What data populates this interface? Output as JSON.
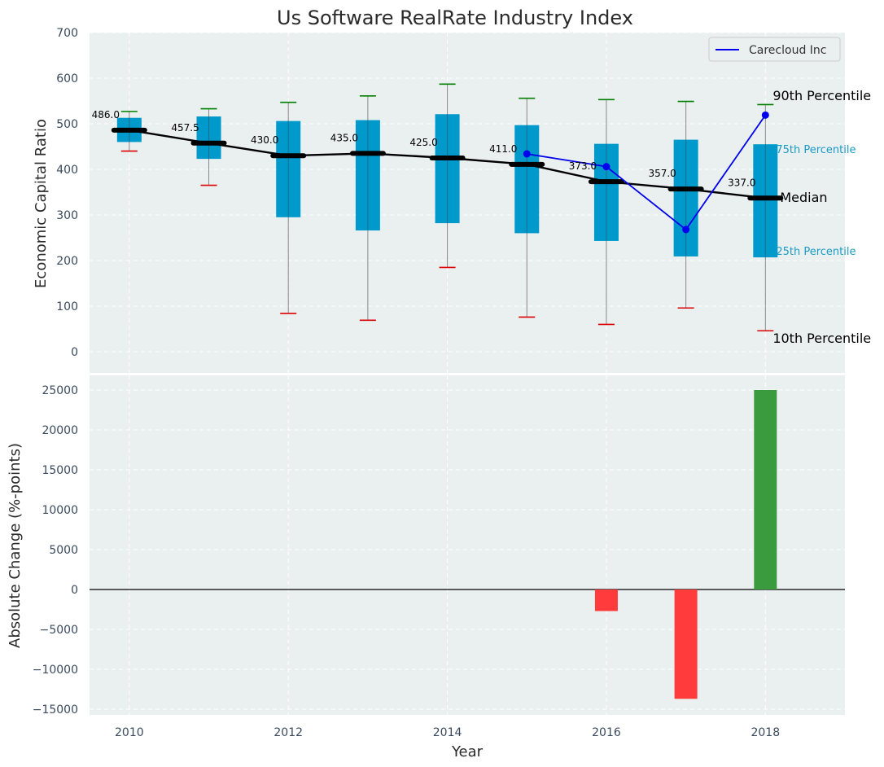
{
  "chart_data": [
    {
      "type": "box",
      "title": "Us Software RealRate Industry Index",
      "ylabel": "Economic Capital Ratio",
      "ylim": [
        -50,
        700
      ],
      "yticks": [
        0,
        100,
        200,
        300,
        400,
        500,
        600,
        700
      ],
      "xlim": [
        2009.5,
        2019.0
      ],
      "grid": true,
      "legend_position": "top-right",
      "colors": {
        "box": "#0099cc",
        "median_line": "#000000",
        "series": "#0000ee",
        "p90": "#008000",
        "p10": "#dd0000",
        "whisker": "#888888",
        "background": "#eaeff0"
      },
      "years": [
        2010,
        2011,
        2012,
        2013,
        2014,
        2015,
        2016,
        2017,
        2018
      ],
      "p10": [
        440,
        365,
        84,
        69,
        185,
        76,
        60,
        96,
        46
      ],
      "p25": [
        460,
        423,
        295,
        266,
        282,
        260,
        243,
        209,
        207
      ],
      "median": [
        486.0,
        457.5,
        430.0,
        435.0,
        425.0,
        411.0,
        373.0,
        357.0,
        337.0
      ],
      "median_labels": [
        "486.0",
        "457.5",
        "430.0",
        "435.0",
        "425.0",
        "411.0",
        "373.0",
        "357.0",
        "337.0"
      ],
      "p75": [
        513,
        516,
        506,
        508,
        521,
        497,
        456,
        465,
        455
      ],
      "p90": [
        527,
        533,
        547,
        561,
        587,
        556,
        553,
        549,
        542
      ],
      "series": [
        {
          "name": "Carecloud Inc",
          "x": [
            2015,
            2016,
            2017,
            2018
          ],
          "values": [
            434,
            406,
            268,
            519
          ]
        }
      ],
      "annotations": {
        "p90": "90th Percentile",
        "p75": "75th Percentile",
        "median": "Median",
        "p25": "25th Percentile",
        "p10": "10th Percentile"
      }
    },
    {
      "type": "bar",
      "xlabel": "Year",
      "ylabel": "Absolute Change (%-points)",
      "ylim": [
        -15500,
        26000
      ],
      "yticks": [
        -15000,
        -10000,
        -5000,
        0,
        5000,
        10000,
        15000,
        20000,
        25000
      ],
      "xticks": [
        2010,
        2012,
        2014,
        2016,
        2018
      ],
      "grid": true,
      "x": [
        2016,
        2017,
        2018
      ],
      "values": [
        -2700,
        -13700,
        25000
      ],
      "colors": {
        "positive": "#3a9a3e",
        "negative": "#ff3b3b",
        "zero_line": "#000000"
      }
    }
  ]
}
